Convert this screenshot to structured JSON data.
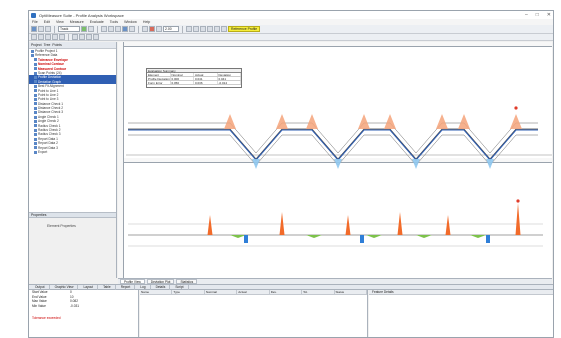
{
  "window": {
    "title": "OptiMeasure Suite - Profile Analysis Workspace"
  },
  "menu": [
    "File",
    "Edit",
    "View",
    "Measure",
    "Evaluate",
    "Tools",
    "Window",
    "Help"
  ],
  "toolbar": {
    "field1": "Track",
    "field2": "2.00",
    "highlight": "Reference Profile"
  },
  "tree": {
    "header_tabs": [
      "Project",
      "Tree",
      "Points"
    ],
    "items": [
      {
        "label": "Profile Project 1",
        "style": "normal"
      },
      {
        "label": "Reference Data",
        "style": "normal"
      },
      {
        "label": "Tolerance Envelope",
        "style": "red"
      },
      {
        "label": "Nominal Contour",
        "style": "red"
      },
      {
        "label": "Measured Contour",
        "style": "red"
      },
      {
        "label": "Scan Points (24)",
        "style": "normal"
      },
      {
        "label": "Profile Deviation",
        "style": "sel"
      },
      {
        "label": "Deviation Graph",
        "style": "sel"
      },
      {
        "label": "Best Fit Alignment",
        "style": "normal"
      },
      {
        "label": "Point to Line 1",
        "style": "normal"
      },
      {
        "label": "Point to Line 2",
        "style": "normal"
      },
      {
        "label": "Point to Line 3",
        "style": "normal"
      },
      {
        "label": "Distance Check 1",
        "style": "normal"
      },
      {
        "label": "Distance Check 2",
        "style": "normal"
      },
      {
        "label": "Distance Check 3",
        "style": "normal"
      },
      {
        "label": "Angle Check 1",
        "style": "normal"
      },
      {
        "label": "Angle Check 2",
        "style": "normal"
      },
      {
        "label": "Radius Check 1",
        "style": "normal"
      },
      {
        "label": "Radius Check 2",
        "style": "normal"
      },
      {
        "label": "Radius Check 3",
        "style": "normal"
      },
      {
        "label": "Report Data 1",
        "style": "normal"
      },
      {
        "label": "Report Data 2",
        "style": "normal"
      },
      {
        "label": "Report Data 3",
        "style": "normal"
      },
      {
        "label": "Export",
        "style": "normal"
      }
    ],
    "lower_header": "Properties",
    "lower_label": "Element Properties"
  },
  "data_table": {
    "title": "Evaluation Summary",
    "headers": [
      "Element",
      "Nominal",
      "Actual",
      "Deviation"
    ],
    "rows": [
      [
        "Profile Deviation",
        "0.000",
        "0.041",
        "0.041"
      ],
      [
        "Form Error",
        "0.050",
        "0.036",
        "-0.014"
      ]
    ]
  },
  "colors": {
    "upper_tol": "#f5a37a",
    "lower_tol": "#8fc8f0",
    "nominal": "#444444",
    "measured": "#2f5fb3",
    "dev_pos": "#f26b2a",
    "dev_neg": "#2f7fd8",
    "dev_ok": "#7cc24a"
  },
  "plot_tabs": [
    "Profile View",
    "Deviation Plot",
    "Statistics"
  ],
  "bottom_tabs": [
    "Output",
    "Graphic View",
    "Layout",
    "Table",
    "Report",
    "Log",
    "Details",
    "Script"
  ],
  "props": [
    {
      "k": "Start Value",
      "v": "0"
    },
    {
      "k": "End Value",
      "v": "10"
    },
    {
      "k": "Max Value",
      "v": "0.082"
    },
    {
      "k": "Min Value",
      "v": "-0.031"
    }
  ],
  "props_red": "Tolerance exceeded",
  "grid_headers": [
    "Name",
    "Type",
    "Nominal",
    "Actual",
    "Dev.",
    "Tol.",
    "Status"
  ],
  "right_panel_title": "Feature Details"
}
